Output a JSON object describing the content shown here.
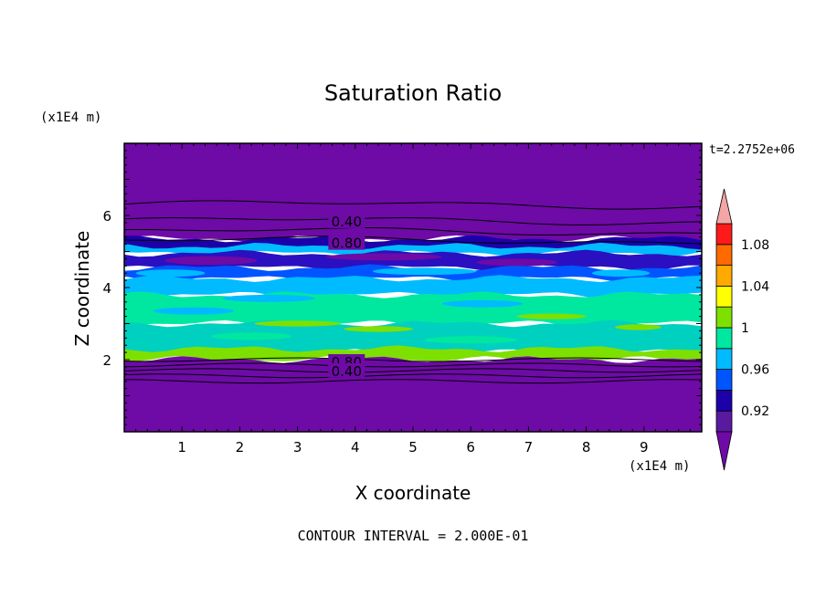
{
  "chart_data": {
    "type": "heatmap",
    "title": "Saturation Ratio",
    "xlabel": "X coordinate",
    "ylabel": "Z coordinate",
    "x_unit": "(x1E4 m)",
    "y_unit": "(x1E4 m)",
    "time_label": "t=2.2752e+06",
    "footer": "CONTOUR INTERVAL = 2.000E-01",
    "xlim": [
      0,
      10
    ],
    "ylim": [
      0,
      8
    ],
    "x_ticks": [
      1,
      2,
      3,
      4,
      5,
      6,
      7,
      8,
      9
    ],
    "y_ticks": [
      2,
      4,
      6
    ],
    "contour_labels": [
      {
        "text": "0.40",
        "x": 3.85,
        "z": 5.85
      },
      {
        "text": "0.80",
        "x": 3.85,
        "z": 5.25
      },
      {
        "text": "0.80",
        "x": 3.85,
        "z": 1.95
      },
      {
        "text": "0.40",
        "x": 3.85,
        "z": 1.7
      }
    ],
    "colorbar": {
      "levels": [
        0.9,
        0.92,
        0.94,
        0.96,
        0.98,
        1.0,
        1.02,
        1.04,
        1.06,
        1.08,
        1.1
      ],
      "colors": [
        "#5a1aa0",
        "#1c00aa",
        "#0055ff",
        "#00bbff",
        "#00e8a0",
        "#7ee000",
        "#ffff00",
        "#ffaa00",
        "#ff6a00",
        "#ff1a1a"
      ],
      "under_color": "#6e0aa6",
      "over_color": "#f4a6a6",
      "labels": [
        "1.08",
        "1.04",
        "1",
        "0.96",
        "0.92"
      ],
      "label_values": [
        1.08,
        1.04,
        1.0,
        0.96,
        0.92
      ]
    },
    "bands": [
      {
        "z0": 5.35,
        "z1": 8.0,
        "color": "#6e0aa6"
      },
      {
        "z0": 5.05,
        "z1": 5.35,
        "color": "#1c00aa"
      },
      {
        "z0": 4.95,
        "z1": 5.15,
        "color": "#00bbff"
      },
      {
        "z0": 4.55,
        "z1": 4.95,
        "color": "#2a10c0"
      },
      {
        "z0": 4.25,
        "z1": 4.55,
        "color": "#0055ff"
      },
      {
        "z0": 3.8,
        "z1": 4.25,
        "color": "#00bbff"
      },
      {
        "z0": 3.0,
        "z1": 3.8,
        "color": "#00e8a0"
      },
      {
        "z0": 2.2,
        "z1": 3.0,
        "color": "#00d0c0"
      },
      {
        "z0": 2.0,
        "z1": 2.3,
        "color": "#7ee000"
      },
      {
        "z0": 0.0,
        "z1": 2.0,
        "color": "#6e0aa6"
      }
    ],
    "contour_z": [
      6.3,
      5.85,
      5.55,
      5.3,
      2.0,
      1.85,
      1.7,
      1.55,
      1.4
    ],
    "grid": false
  }
}
